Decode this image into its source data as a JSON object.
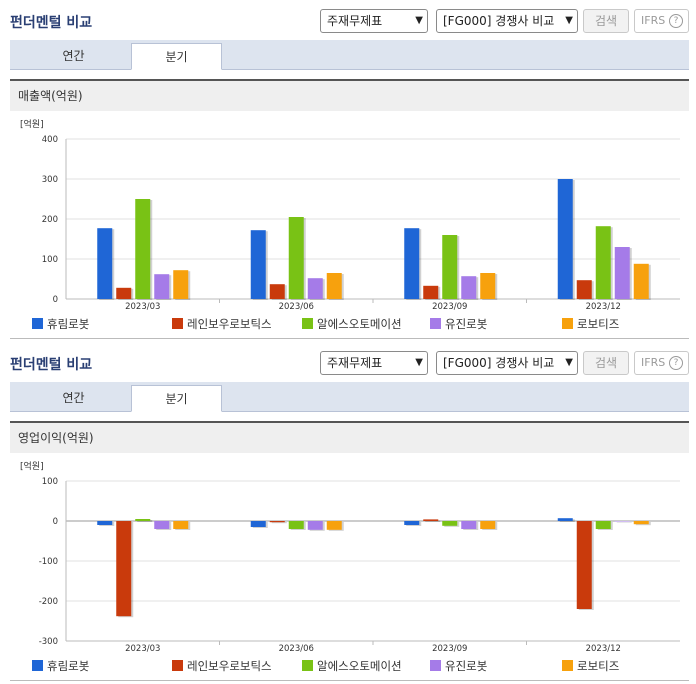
{
  "panels": [
    {
      "title": "펀더멘털 비교",
      "select1": "주재무제표",
      "select2": "[FG000] 경쟁사 비교",
      "search_label": "검색",
      "ifrs_label": "IFRS",
      "tabs": [
        "연간",
        "분기"
      ],
      "active_tab": "분기",
      "chart_title": "매출액(억원)"
    },
    {
      "title": "펀더멘털 비교",
      "select1": "주재무제표",
      "select2": "[FG000] 경쟁사 비교",
      "search_label": "검색",
      "ifrs_label": "IFRS",
      "tabs": [
        "연간",
        "분기"
      ],
      "active_tab": "분기",
      "chart_title": "영업이익(억원)"
    }
  ],
  "chart_data": [
    {
      "type": "bar",
      "title": "매출액(억원)",
      "unit_label": "[억원]",
      "categories": [
        "2023/03",
        "2023/06",
        "2023/09",
        "2023/12"
      ],
      "ylim": [
        0,
        400
      ],
      "yticks": [
        0,
        100,
        200,
        300,
        400
      ],
      "grid": true,
      "legend_position": "bottom",
      "series": [
        {
          "name": "휴림로봇",
          "color": "#1f66d6",
          "values": [
            177,
            172,
            177,
            300
          ]
        },
        {
          "name": "레인보우로보틱스",
          "color": "#c93a0c",
          "values": [
            28,
            37,
            33,
            47
          ]
        },
        {
          "name": "알에스오토메이션",
          "color": "#79c215",
          "values": [
            250,
            205,
            160,
            182
          ]
        },
        {
          "name": "유진로봇",
          "color": "#a57be8",
          "values": [
            62,
            52,
            57,
            130
          ]
        },
        {
          "name": "로보티즈",
          "color": "#f7a10d",
          "values": [
            72,
            65,
            65,
            88
          ]
        }
      ]
    },
    {
      "type": "bar",
      "title": "영업이익(억원)",
      "unit_label": "[억원]",
      "categories": [
        "2023/03",
        "2023/06",
        "2023/09",
        "2023/12"
      ],
      "ylim": [
        -300,
        100
      ],
      "yticks": [
        -300,
        -200,
        -100,
        0,
        100
      ],
      "grid": true,
      "legend_position": "bottom",
      "series": [
        {
          "name": "휴림로봇",
          "color": "#1f66d6",
          "values": [
            -10,
            -15,
            -10,
            7
          ]
        },
        {
          "name": "레인보우로보틱스",
          "color": "#c93a0c",
          "values": [
            -238,
            -3,
            4,
            -220
          ]
        },
        {
          "name": "알에스오토메이션",
          "color": "#79c215",
          "values": [
            5,
            -20,
            -12,
            -20
          ]
        },
        {
          "name": "유진로봇",
          "color": "#a57be8",
          "values": [
            -20,
            -22,
            -20,
            0
          ]
        },
        {
          "name": "로보티즈",
          "color": "#f7a10d",
          "values": [
            -20,
            -22,
            -20,
            -8
          ]
        }
      ]
    }
  ]
}
